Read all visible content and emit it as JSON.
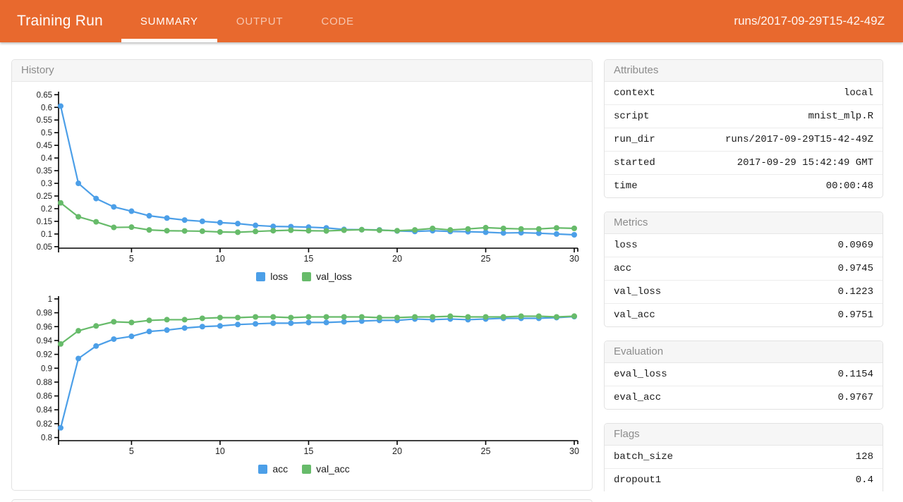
{
  "header": {
    "title": "Training Run",
    "tabs": [
      {
        "label": "SUMMARY",
        "active": true
      },
      {
        "label": "OUTPUT",
        "active": false
      },
      {
        "label": "CODE",
        "active": false
      }
    ],
    "run_name": "runs/2017-09-29T15-42-49Z"
  },
  "colors": {
    "header_bg": "#E8692E",
    "active_tab_underline": "#FFFFFF",
    "loss_series_blue": "#4C9FE8",
    "val_series_green": "#67BB6A"
  },
  "history_panel": {
    "title": "History"
  },
  "side_panels": [
    {
      "title": "Attributes",
      "rows": [
        {
          "key": "context",
          "value": "local"
        },
        {
          "key": "script",
          "value": "mnist_mlp.R"
        },
        {
          "key": "run_dir",
          "value": "runs/2017-09-29T15-42-49Z"
        },
        {
          "key": "started",
          "value": "2017-09-29 15:42:49 GMT"
        },
        {
          "key": "time",
          "value": "00:00:48"
        }
      ]
    },
    {
      "title": "Metrics",
      "rows": [
        {
          "key": "loss",
          "value": "0.0969"
        },
        {
          "key": "acc",
          "value": "0.9745"
        },
        {
          "key": "val_loss",
          "value": "0.1223"
        },
        {
          "key": "val_acc",
          "value": "0.9751"
        }
      ]
    },
    {
      "title": "Evaluation",
      "rows": [
        {
          "key": "eval_loss",
          "value": "0.1154"
        },
        {
          "key": "eval_acc",
          "value": "0.9767"
        }
      ]
    },
    {
      "title": "Flags",
      "rows": [
        {
          "key": "batch_size",
          "value": "128"
        },
        {
          "key": "dropout1",
          "value": "0.4"
        }
      ]
    }
  ],
  "chart_data": [
    {
      "type": "line",
      "title": "",
      "xlabel": "",
      "ylabel": "",
      "grid": false,
      "legend_position": "bottom",
      "x_range": [
        1,
        30
      ],
      "x_ticks": [
        5,
        10,
        15,
        20,
        25,
        30
      ],
      "ylim": [
        0.05,
        0.65
      ],
      "axis_range": [
        0.044,
        0.662
      ],
      "y_ticks": [
        0.05,
        0.1,
        0.15,
        0.2,
        0.25,
        0.3,
        0.35,
        0.4,
        0.45,
        0.5,
        0.55,
        0.6,
        0.65
      ],
      "series": [
        {
          "name": "loss",
          "color": "#4C9FE8",
          "values": [
            0.605,
            0.3,
            0.24,
            0.207,
            0.19,
            0.172,
            0.163,
            0.155,
            0.15,
            0.145,
            0.141,
            0.134,
            0.13,
            0.129,
            0.127,
            0.124,
            0.118,
            0.117,
            0.116,
            0.112,
            0.11,
            0.113,
            0.11,
            0.109,
            0.107,
            0.104,
            0.105,
            0.103,
            0.1,
            0.0969
          ]
        },
        {
          "name": "val_loss",
          "color": "#67BB6A",
          "values": [
            0.223,
            0.168,
            0.148,
            0.126,
            0.127,
            0.116,
            0.113,
            0.112,
            0.111,
            0.108,
            0.107,
            0.11,
            0.113,
            0.115,
            0.113,
            0.112,
            0.115,
            0.117,
            0.115,
            0.113,
            0.116,
            0.122,
            0.116,
            0.12,
            0.125,
            0.122,
            0.12,
            0.12,
            0.124,
            0.1223
          ]
        }
      ]
    },
    {
      "type": "line",
      "title": "",
      "xlabel": "",
      "ylabel": "",
      "grid": false,
      "legend_position": "bottom",
      "x_range": [
        1,
        30
      ],
      "x_ticks": [
        5,
        10,
        15,
        20,
        25,
        30
      ],
      "ylim": [
        0.8,
        1.0
      ],
      "axis_range": [
        0.7955,
        1.004
      ],
      "y_ticks": [
        0.8,
        0.82,
        0.84,
        0.86,
        0.88,
        0.9,
        0.92,
        0.94,
        0.96,
        0.98,
        1
      ],
      "series": [
        {
          "name": "acc",
          "color": "#4C9FE8",
          "values": [
            0.814,
            0.914,
            0.932,
            0.942,
            0.946,
            0.953,
            0.955,
            0.958,
            0.96,
            0.961,
            0.963,
            0.964,
            0.965,
            0.965,
            0.966,
            0.966,
            0.967,
            0.968,
            0.969,
            0.969,
            0.971,
            0.97,
            0.971,
            0.97,
            0.971,
            0.972,
            0.972,
            0.972,
            0.973,
            0.9745
          ]
        },
        {
          "name": "val_acc",
          "color": "#67BB6A",
          "values": [
            0.935,
            0.954,
            0.961,
            0.967,
            0.966,
            0.969,
            0.97,
            0.97,
            0.972,
            0.973,
            0.973,
            0.974,
            0.974,
            0.973,
            0.974,
            0.974,
            0.974,
            0.974,
            0.973,
            0.973,
            0.974,
            0.974,
            0.975,
            0.974,
            0.974,
            0.974,
            0.975,
            0.975,
            0.974,
            0.9751
          ]
        }
      ]
    }
  ]
}
